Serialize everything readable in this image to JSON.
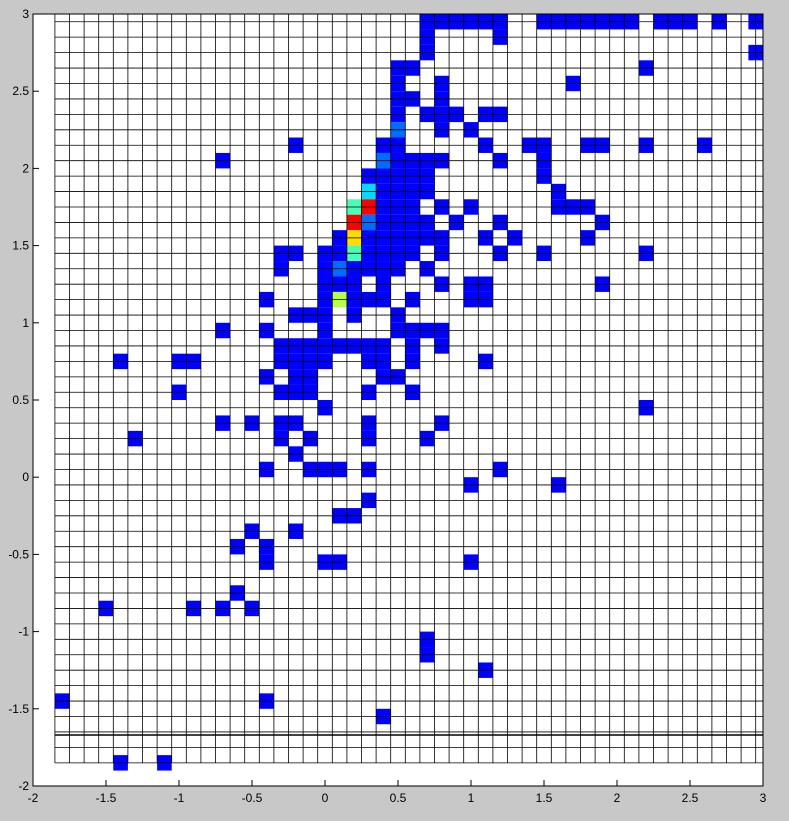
{
  "chart_data": {
    "type": "heatmap",
    "title": "",
    "xlabel": "",
    "ylabel": "",
    "xlim": [
      -2,
      3
    ],
    "ylim": [
      -2,
      3
    ],
    "bin_size": 0.1,
    "grid": true,
    "x_ticks": [
      -2,
      -1.5,
      -1,
      -0.5,
      0,
      0.5,
      1,
      1.5,
      2,
      2.5,
      3
    ],
    "x_tick_labels": [
      "-2",
      "-1.5",
      "-1",
      "-0.5",
      "0",
      "0.5",
      "1",
      "1.5",
      "2",
      "2.5",
      "3"
    ],
    "y_ticks": [
      -2,
      -1.5,
      -1,
      -0.5,
      0,
      0.5,
      1,
      1.5,
      2,
      2.5,
      3
    ],
    "y_tick_labels": [
      "-2",
      "-1.5",
      "-1",
      "-0.5",
      "0",
      "0.5",
      "1",
      "1.5",
      "2",
      "2.5",
      "3"
    ],
    "colormap": "jet",
    "value_scale": [
      1,
      8
    ],
    "horizontal_line_y": -1.67,
    "colors": {
      "background": "#c8c8c8",
      "plot_area": "#ffffff",
      "grid": "#000000"
    },
    "cells": [
      {
        "x": 0.7,
        "y": 2.95,
        "v": 1
      },
      {
        "x": 0.8,
        "y": 2.95,
        "v": 1
      },
      {
        "x": 0.9,
        "y": 2.95,
        "v": 1
      },
      {
        "x": 1.0,
        "y": 2.95,
        "v": 1
      },
      {
        "x": 1.1,
        "y": 2.95,
        "v": 1
      },
      {
        "x": 1.2,
        "y": 2.95,
        "v": 1
      },
      {
        "x": 1.5,
        "y": 2.95,
        "v": 1
      },
      {
        "x": 1.6,
        "y": 2.95,
        "v": 1
      },
      {
        "x": 1.7,
        "y": 2.95,
        "v": 1
      },
      {
        "x": 1.8,
        "y": 2.95,
        "v": 1
      },
      {
        "x": 1.9,
        "y": 2.95,
        "v": 1
      },
      {
        "x": 2.0,
        "y": 2.95,
        "v": 1
      },
      {
        "x": 2.1,
        "y": 2.95,
        "v": 1
      },
      {
        "x": 2.3,
        "y": 2.95,
        "v": 1
      },
      {
        "x": 2.4,
        "y": 2.95,
        "v": 1
      },
      {
        "x": 2.5,
        "y": 2.95,
        "v": 1
      },
      {
        "x": 2.7,
        "y": 2.95,
        "v": 1
      },
      {
        "x": 2.95,
        "y": 2.95,
        "v": 1
      },
      {
        "x": 0.7,
        "y": 2.85,
        "v": 1
      },
      {
        "x": 1.2,
        "y": 2.85,
        "v": 1
      },
      {
        "x": 0.7,
        "y": 2.75,
        "v": 1
      },
      {
        "x": 2.95,
        "y": 2.75,
        "v": 1
      },
      {
        "x": 0.5,
        "y": 2.65,
        "v": 1
      },
      {
        "x": 0.6,
        "y": 2.65,
        "v": 1
      },
      {
        "x": 2.2,
        "y": 2.65,
        "v": 1
      },
      {
        "x": 0.5,
        "y": 2.55,
        "v": 1
      },
      {
        "x": 0.8,
        "y": 2.55,
        "v": 1
      },
      {
        "x": 1.7,
        "y": 2.55,
        "v": 1
      },
      {
        "x": 0.5,
        "y": 2.45,
        "v": 1
      },
      {
        "x": 0.6,
        "y": 2.45,
        "v": 1
      },
      {
        "x": 0.8,
        "y": 2.45,
        "v": 1
      },
      {
        "x": 0.5,
        "y": 2.35,
        "v": 1
      },
      {
        "x": 0.7,
        "y": 2.35,
        "v": 1
      },
      {
        "x": 0.8,
        "y": 2.35,
        "v": 1
      },
      {
        "x": 0.9,
        "y": 2.35,
        "v": 1
      },
      {
        "x": 1.1,
        "y": 2.35,
        "v": 1
      },
      {
        "x": 1.2,
        "y": 2.35,
        "v": 1
      },
      {
        "x": 0.5,
        "y": 2.25,
        "v": 2
      },
      {
        "x": 0.8,
        "y": 2.25,
        "v": 1
      },
      {
        "x": 1.0,
        "y": 2.25,
        "v": 1
      },
      {
        "x": -0.2,
        "y": 2.15,
        "v": 1
      },
      {
        "x": 0.4,
        "y": 2.15,
        "v": 1
      },
      {
        "x": 0.5,
        "y": 2.15,
        "v": 1
      },
      {
        "x": 1.1,
        "y": 2.15,
        "v": 1
      },
      {
        "x": 1.4,
        "y": 2.15,
        "v": 1
      },
      {
        "x": 1.5,
        "y": 2.15,
        "v": 1
      },
      {
        "x": 1.8,
        "y": 2.15,
        "v": 1
      },
      {
        "x": 1.9,
        "y": 2.15,
        "v": 1
      },
      {
        "x": 2.2,
        "y": 2.15,
        "v": 1
      },
      {
        "x": 2.6,
        "y": 2.15,
        "v": 1
      },
      {
        "x": -0.7,
        "y": 2.05,
        "v": 1
      },
      {
        "x": 0.4,
        "y": 2.05,
        "v": 2
      },
      {
        "x": 0.5,
        "y": 2.05,
        "v": 1
      },
      {
        "x": 0.6,
        "y": 2.05,
        "v": 1
      },
      {
        "x": 0.7,
        "y": 2.05,
        "v": 1
      },
      {
        "x": 0.8,
        "y": 2.05,
        "v": 1
      },
      {
        "x": 1.2,
        "y": 2.05,
        "v": 1
      },
      {
        "x": 1.5,
        "y": 2.05,
        "v": 1
      },
      {
        "x": 0.3,
        "y": 1.95,
        "v": 1
      },
      {
        "x": 0.4,
        "y": 1.95,
        "v": 1
      },
      {
        "x": 0.5,
        "y": 1.95,
        "v": 1
      },
      {
        "x": 0.6,
        "y": 1.95,
        "v": 1
      },
      {
        "x": 0.7,
        "y": 1.95,
        "v": 1
      },
      {
        "x": 1.5,
        "y": 1.95,
        "v": 1
      },
      {
        "x": 0.3,
        "y": 1.85,
        "v": 3
      },
      {
        "x": 0.4,
        "y": 1.85,
        "v": 1
      },
      {
        "x": 0.5,
        "y": 1.85,
        "v": 1
      },
      {
        "x": 0.6,
        "y": 1.85,
        "v": 1
      },
      {
        "x": 0.7,
        "y": 1.85,
        "v": 1
      },
      {
        "x": 1.6,
        "y": 1.85,
        "v": 1
      },
      {
        "x": 0.2,
        "y": 1.75,
        "v": 4
      },
      {
        "x": 0.3,
        "y": 1.75,
        "v": 8
      },
      {
        "x": 0.4,
        "y": 1.75,
        "v": 1
      },
      {
        "x": 0.5,
        "y": 1.75,
        "v": 1
      },
      {
        "x": 0.6,
        "y": 1.75,
        "v": 1
      },
      {
        "x": 0.8,
        "y": 1.75,
        "v": 1
      },
      {
        "x": 1.0,
        "y": 1.75,
        "v": 1
      },
      {
        "x": 1.6,
        "y": 1.75,
        "v": 1
      },
      {
        "x": 1.7,
        "y": 1.75,
        "v": 1
      },
      {
        "x": 1.8,
        "y": 1.75,
        "v": 1
      },
      {
        "x": 0.2,
        "y": 1.65,
        "v": 8
      },
      {
        "x": 0.3,
        "y": 1.65,
        "v": 2
      },
      {
        "x": 0.4,
        "y": 1.65,
        "v": 1
      },
      {
        "x": 0.5,
        "y": 1.65,
        "v": 1
      },
      {
        "x": 0.6,
        "y": 1.65,
        "v": 1
      },
      {
        "x": 0.7,
        "y": 1.65,
        "v": 1
      },
      {
        "x": 0.9,
        "y": 1.65,
        "v": 1
      },
      {
        "x": 1.2,
        "y": 1.65,
        "v": 1
      },
      {
        "x": 1.9,
        "y": 1.65,
        "v": 1
      },
      {
        "x": 0.1,
        "y": 1.55,
        "v": 1
      },
      {
        "x": 0.2,
        "y": 1.55,
        "v": 6
      },
      {
        "x": 0.3,
        "y": 1.55,
        "v": 1
      },
      {
        "x": 0.4,
        "y": 1.55,
        "v": 1
      },
      {
        "x": 0.5,
        "y": 1.55,
        "v": 1
      },
      {
        "x": 0.6,
        "y": 1.55,
        "v": 1
      },
      {
        "x": 0.7,
        "y": 1.55,
        "v": 1
      },
      {
        "x": 0.8,
        "y": 1.55,
        "v": 1
      },
      {
        "x": 1.1,
        "y": 1.55,
        "v": 1
      },
      {
        "x": 1.3,
        "y": 1.55,
        "v": 1
      },
      {
        "x": 1.8,
        "y": 1.55,
        "v": 1
      },
      {
        "x": -0.3,
        "y": 1.45,
        "v": 1
      },
      {
        "x": -0.2,
        "y": 1.45,
        "v": 1
      },
      {
        "x": 0.0,
        "y": 1.45,
        "v": 1
      },
      {
        "x": 0.1,
        "y": 1.45,
        "v": 1
      },
      {
        "x": 0.2,
        "y": 1.45,
        "v": 4
      },
      {
        "x": 0.3,
        "y": 1.45,
        "v": 1
      },
      {
        "x": 0.4,
        "y": 1.45,
        "v": 1
      },
      {
        "x": 0.5,
        "y": 1.45,
        "v": 1
      },
      {
        "x": 0.6,
        "y": 1.45,
        "v": 1
      },
      {
        "x": 0.8,
        "y": 1.45,
        "v": 1
      },
      {
        "x": 1.2,
        "y": 1.45,
        "v": 1
      },
      {
        "x": 1.5,
        "y": 1.45,
        "v": 1
      },
      {
        "x": 2.2,
        "y": 1.45,
        "v": 1
      },
      {
        "x": -0.3,
        "y": 1.35,
        "v": 1
      },
      {
        "x": 0.0,
        "y": 1.35,
        "v": 1
      },
      {
        "x": 0.1,
        "y": 1.35,
        "v": 2
      },
      {
        "x": 0.2,
        "y": 1.35,
        "v": 1
      },
      {
        "x": 0.3,
        "y": 1.35,
        "v": 1
      },
      {
        "x": 0.4,
        "y": 1.35,
        "v": 1
      },
      {
        "x": 0.5,
        "y": 1.35,
        "v": 1
      },
      {
        "x": 0.7,
        "y": 1.35,
        "v": 1
      },
      {
        "x": 0.0,
        "y": 1.25,
        "v": 1
      },
      {
        "x": 0.1,
        "y": 1.25,
        "v": 1
      },
      {
        "x": 0.2,
        "y": 1.25,
        "v": 1
      },
      {
        "x": 0.4,
        "y": 1.25,
        "v": 1
      },
      {
        "x": 0.8,
        "y": 1.25,
        "v": 1
      },
      {
        "x": 1.0,
        "y": 1.25,
        "v": 1
      },
      {
        "x": 1.1,
        "y": 1.25,
        "v": 1
      },
      {
        "x": 1.9,
        "y": 1.25,
        "v": 1
      },
      {
        "x": -0.4,
        "y": 1.15,
        "v": 1
      },
      {
        "x": 0.0,
        "y": 1.15,
        "v": 1
      },
      {
        "x": 0.1,
        "y": 1.15,
        "v": 5
      },
      {
        "x": 0.2,
        "y": 1.15,
        "v": 1
      },
      {
        "x": 0.3,
        "y": 1.15,
        "v": 1
      },
      {
        "x": 0.4,
        "y": 1.15,
        "v": 1
      },
      {
        "x": 0.6,
        "y": 1.15,
        "v": 1
      },
      {
        "x": 1.0,
        "y": 1.15,
        "v": 1
      },
      {
        "x": 1.1,
        "y": 1.15,
        "v": 1
      },
      {
        "x": -0.2,
        "y": 1.05,
        "v": 1
      },
      {
        "x": -0.1,
        "y": 1.05,
        "v": 1
      },
      {
        "x": 0.0,
        "y": 1.05,
        "v": 1
      },
      {
        "x": 0.2,
        "y": 1.05,
        "v": 1
      },
      {
        "x": 0.5,
        "y": 1.05,
        "v": 1
      },
      {
        "x": -0.7,
        "y": 0.95,
        "v": 1
      },
      {
        "x": -0.4,
        "y": 0.95,
        "v": 1
      },
      {
        "x": 0.0,
        "y": 0.95,
        "v": 1
      },
      {
        "x": 0.5,
        "y": 0.95,
        "v": 1
      },
      {
        "x": 0.6,
        "y": 0.95,
        "v": 1
      },
      {
        "x": 0.7,
        "y": 0.95,
        "v": 1
      },
      {
        "x": 0.8,
        "y": 0.95,
        "v": 1
      },
      {
        "x": -0.3,
        "y": 0.85,
        "v": 1
      },
      {
        "x": -0.2,
        "y": 0.85,
        "v": 1
      },
      {
        "x": -0.1,
        "y": 0.85,
        "v": 1
      },
      {
        "x": 0.0,
        "y": 0.85,
        "v": 1
      },
      {
        "x": 0.1,
        "y": 0.85,
        "v": 1
      },
      {
        "x": 0.2,
        "y": 0.85,
        "v": 1
      },
      {
        "x": 0.3,
        "y": 0.85,
        "v": 1
      },
      {
        "x": 0.4,
        "y": 0.85,
        "v": 1
      },
      {
        "x": 0.6,
        "y": 0.85,
        "v": 1
      },
      {
        "x": 0.8,
        "y": 0.85,
        "v": 1
      },
      {
        "x": -1.4,
        "y": 0.75,
        "v": 1
      },
      {
        "x": -1.0,
        "y": 0.75,
        "v": 1
      },
      {
        "x": -0.9,
        "y": 0.75,
        "v": 1
      },
      {
        "x": -0.3,
        "y": 0.75,
        "v": 1
      },
      {
        "x": -0.2,
        "y": 0.75,
        "v": 1
      },
      {
        "x": -0.1,
        "y": 0.75,
        "v": 1
      },
      {
        "x": 0.0,
        "y": 0.75,
        "v": 1
      },
      {
        "x": 0.3,
        "y": 0.75,
        "v": 1
      },
      {
        "x": 0.4,
        "y": 0.75,
        "v": 1
      },
      {
        "x": 0.6,
        "y": 0.75,
        "v": 1
      },
      {
        "x": 1.1,
        "y": 0.75,
        "v": 1
      },
      {
        "x": -0.4,
        "y": 0.65,
        "v": 1
      },
      {
        "x": -0.2,
        "y": 0.65,
        "v": 1
      },
      {
        "x": -0.1,
        "y": 0.65,
        "v": 1
      },
      {
        "x": 0.4,
        "y": 0.65,
        "v": 1
      },
      {
        "x": 0.5,
        "y": 0.65,
        "v": 1
      },
      {
        "x": -1.0,
        "y": 0.55,
        "v": 1
      },
      {
        "x": -0.3,
        "y": 0.55,
        "v": 1
      },
      {
        "x": -0.2,
        "y": 0.55,
        "v": 1
      },
      {
        "x": -0.1,
        "y": 0.55,
        "v": 1
      },
      {
        "x": 0.3,
        "y": 0.55,
        "v": 1
      },
      {
        "x": 0.6,
        "y": 0.55,
        "v": 1
      },
      {
        "x": 0.0,
        "y": 0.45,
        "v": 1
      },
      {
        "x": 2.2,
        "y": 0.45,
        "v": 1
      },
      {
        "x": -0.7,
        "y": 0.35,
        "v": 1
      },
      {
        "x": -0.5,
        "y": 0.35,
        "v": 1
      },
      {
        "x": -0.3,
        "y": 0.35,
        "v": 1
      },
      {
        "x": -0.2,
        "y": 0.35,
        "v": 1
      },
      {
        "x": 0.3,
        "y": 0.35,
        "v": 1
      },
      {
        "x": 0.8,
        "y": 0.35,
        "v": 1
      },
      {
        "x": -1.3,
        "y": 0.25,
        "v": 1
      },
      {
        "x": -0.3,
        "y": 0.25,
        "v": 1
      },
      {
        "x": -0.1,
        "y": 0.25,
        "v": 1
      },
      {
        "x": 0.3,
        "y": 0.25,
        "v": 1
      },
      {
        "x": 0.7,
        "y": 0.25,
        "v": 1
      },
      {
        "x": -0.2,
        "y": 0.15,
        "v": 1
      },
      {
        "x": -0.4,
        "y": 0.05,
        "v": 1
      },
      {
        "x": -0.1,
        "y": 0.05,
        "v": 1
      },
      {
        "x": 0.0,
        "y": 0.05,
        "v": 1
      },
      {
        "x": 0.1,
        "y": 0.05,
        "v": 1
      },
      {
        "x": 0.3,
        "y": 0.05,
        "v": 1
      },
      {
        "x": 1.2,
        "y": 0.05,
        "v": 1
      },
      {
        "x": 1.0,
        "y": -0.05,
        "v": 1
      },
      {
        "x": 1.6,
        "y": -0.05,
        "v": 1
      },
      {
        "x": 0.3,
        "y": -0.15,
        "v": 1
      },
      {
        "x": 0.1,
        "y": -0.25,
        "v": 1
      },
      {
        "x": 0.2,
        "y": -0.25,
        "v": 1
      },
      {
        "x": -0.5,
        "y": -0.35,
        "v": 1
      },
      {
        "x": -0.2,
        "y": -0.35,
        "v": 1
      },
      {
        "x": -0.6,
        "y": -0.45,
        "v": 1
      },
      {
        "x": -0.4,
        "y": -0.45,
        "v": 1
      },
      {
        "x": -0.4,
        "y": -0.55,
        "v": 1
      },
      {
        "x": 0.0,
        "y": -0.55,
        "v": 1
      },
      {
        "x": 0.1,
        "y": -0.55,
        "v": 1
      },
      {
        "x": 1.0,
        "y": -0.55,
        "v": 1
      },
      {
        "x": -0.6,
        "y": -0.75,
        "v": 1
      },
      {
        "x": -1.5,
        "y": -0.85,
        "v": 1
      },
      {
        "x": -0.9,
        "y": -0.85,
        "v": 1
      },
      {
        "x": -0.7,
        "y": -0.85,
        "v": 1
      },
      {
        "x": -0.5,
        "y": -0.85,
        "v": 1
      },
      {
        "x": 0.7,
        "y": -1.05,
        "v": 1
      },
      {
        "x": 0.7,
        "y": -1.15,
        "v": 1
      },
      {
        "x": 1.1,
        "y": -1.25,
        "v": 1
      },
      {
        "x": -1.8,
        "y": -1.45,
        "v": 1
      },
      {
        "x": -0.4,
        "y": -1.45,
        "v": 1
      },
      {
        "x": 0.4,
        "y": -1.55,
        "v": 1
      },
      {
        "x": -1.4,
        "y": -1.85,
        "v": 1
      },
      {
        "x": -1.1,
        "y": -1.85,
        "v": 1
      }
    ]
  }
}
